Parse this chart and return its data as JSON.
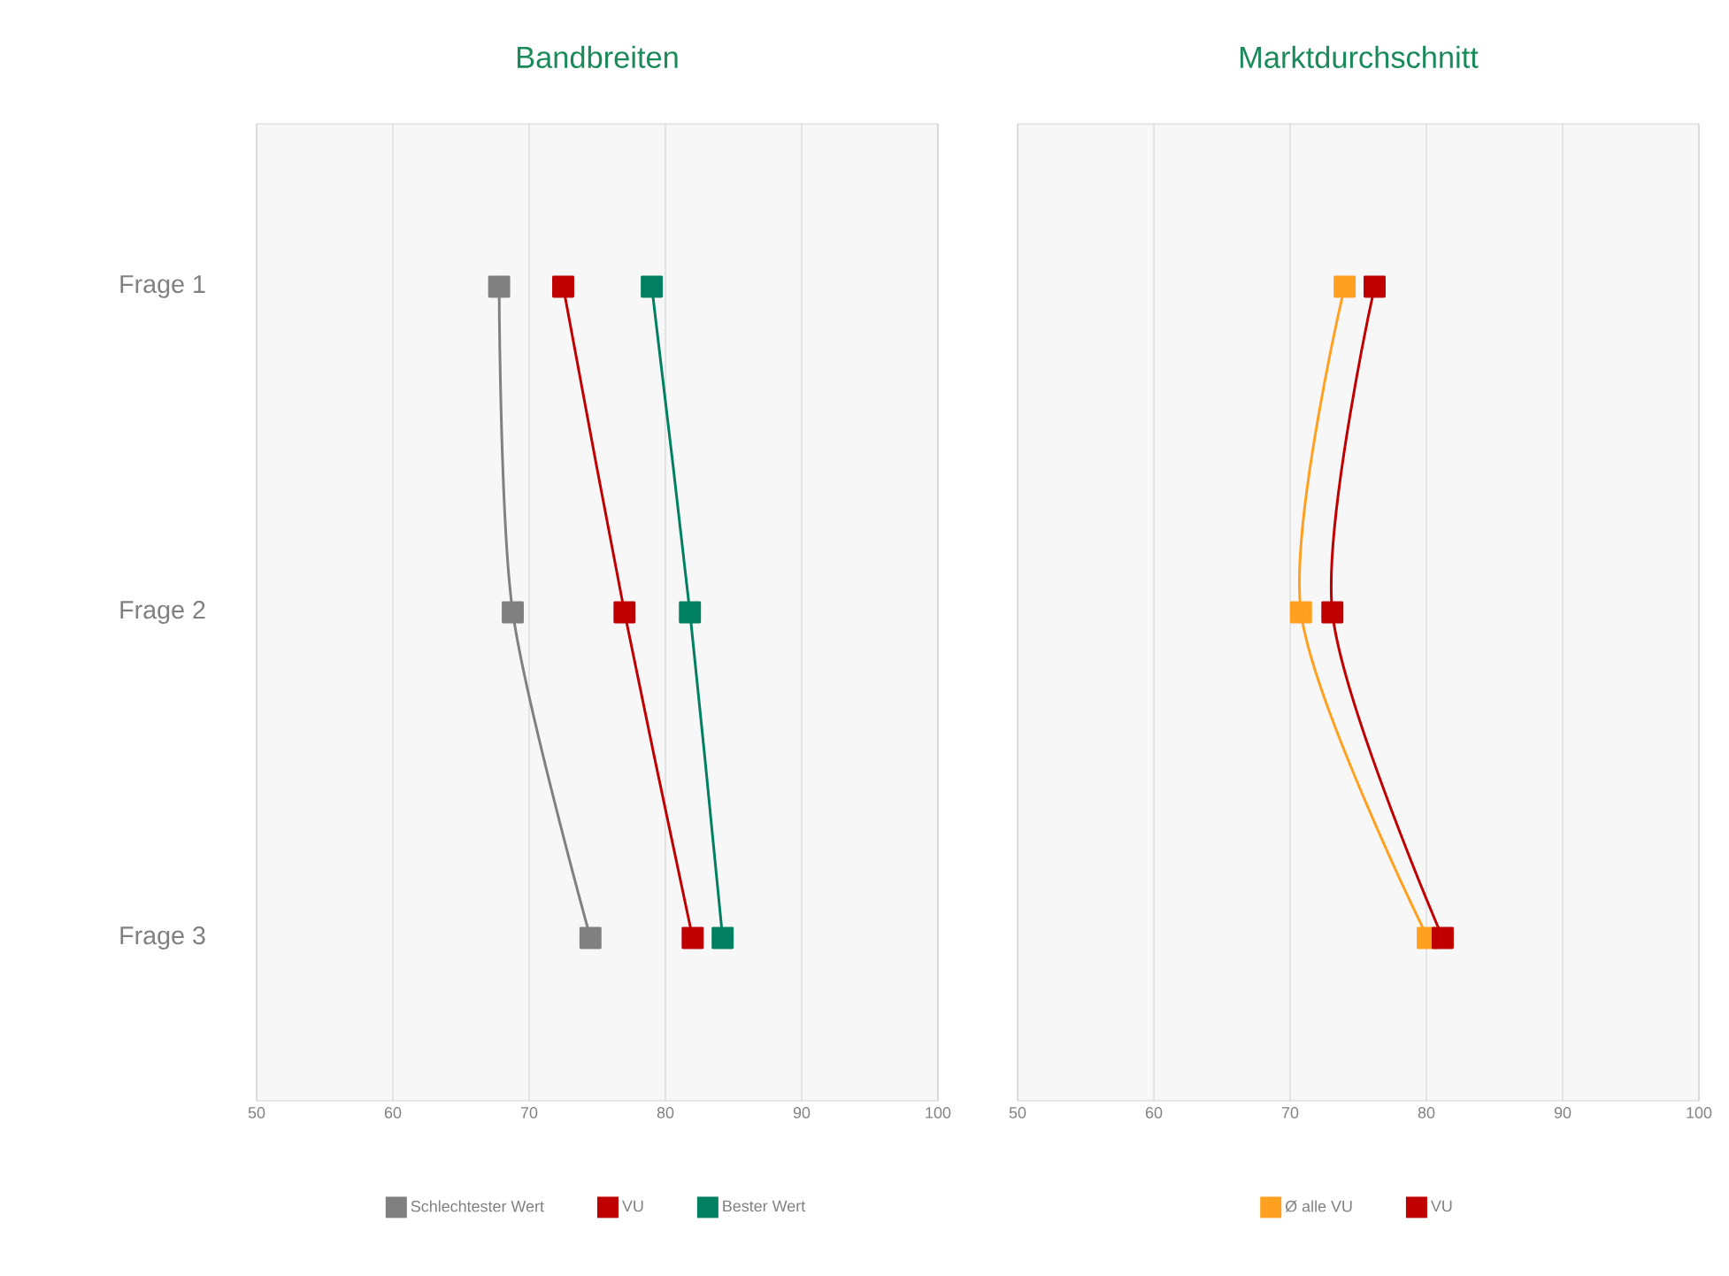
{
  "chart_data": [
    {
      "type": "line",
      "title": "Bandbreiten",
      "categories": [
        "Frage 1",
        "Frage 2",
        "Frage 3"
      ],
      "orientation": "horizontal",
      "xlim": [
        50,
        100
      ],
      "xticks": [
        50,
        60,
        70,
        80,
        90,
        100
      ],
      "grid": "x",
      "legend": "bottom",
      "marker": "square",
      "series": [
        {
          "name": "Schlechtester Wert",
          "color": "#808080",
          "values": [
            67.8,
            68.8,
            74.5
          ]
        },
        {
          "name": "VU",
          "color": "#c00000",
          "values": [
            72.5,
            77,
            82
          ]
        },
        {
          "name": "Bester Wert",
          "color": "#008060",
          "values": [
            79,
            81.8,
            84.2
          ]
        }
      ]
    },
    {
      "type": "line",
      "title": "Marktdurchschnitt",
      "categories": [
        null,
        null,
        null
      ],
      "orientation": "horizontal",
      "xlim": [
        50,
        100
      ],
      "xticks": [
        50,
        60,
        70,
        80,
        90,
        100
      ],
      "grid": "x",
      "legend": "bottom",
      "marker": "square",
      "series": [
        {
          "name": "Ø alle VU",
          "color": "#ffa020",
          "values": [
            74,
            70.8,
            80.1
          ]
        },
        {
          "name": "VU",
          "color": "#c00000",
          "values": [
            76.2,
            73.1,
            81.2
          ]
        }
      ]
    }
  ]
}
